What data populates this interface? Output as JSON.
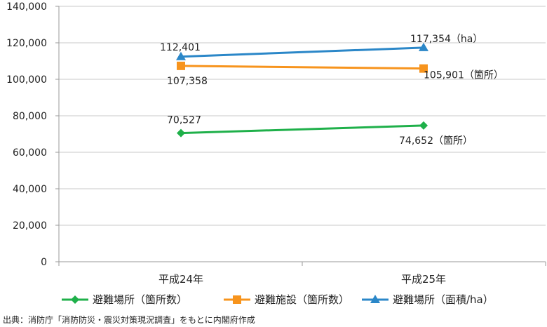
{
  "chart_data": {
    "type": "line",
    "categories": [
      "平成24年",
      "平成25年"
    ],
    "ylim": [
      0,
      140000
    ],
    "yticks": [
      "0",
      "20,000",
      "40,000",
      "60,000",
      "80,000",
      "100,000",
      "120,000",
      "140,000"
    ],
    "grid": true,
    "legend_position": "bottom",
    "series": [
      {
        "name": "避難場所（箇所数）",
        "values": [
          70527,
          74652
        ],
        "color": "#1fb04a",
        "marker": "diamond",
        "labels": [
          "70,527",
          "74,652（箇所）"
        ]
      },
      {
        "name": "避難施設（箇所数）",
        "values": [
          107358,
          105901
        ],
        "color": "#f7941d",
        "marker": "square",
        "labels": [
          "107,358",
          "105,901（箇所）"
        ]
      },
      {
        "name": "避難場所（面積/ha）",
        "values": [
          112401,
          117354
        ],
        "color": "#2b87c8",
        "marker": "triangle",
        "labels": [
          "112,401",
          "117,354（ha）"
        ]
      }
    ]
  },
  "source": "出典：消防庁「消防防災・震災対策現況調査」をもとに内閣府作成"
}
